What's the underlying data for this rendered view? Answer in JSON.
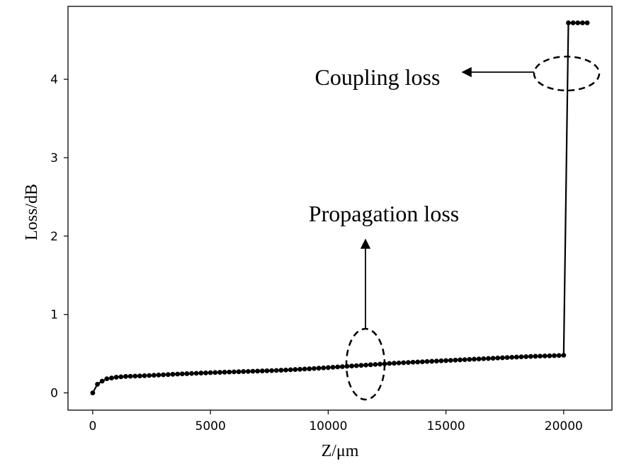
{
  "chart_data": {
    "type": "line",
    "title": "",
    "xlabel": "Z/μm",
    "ylabel": "Loss/dB",
    "xlim": [
      -1050,
      22050
    ],
    "ylim": [
      -0.22,
      4.93
    ],
    "xticks": [
      0,
      5000,
      10000,
      15000,
      20000
    ],
    "yticks": [
      0,
      1,
      2,
      3,
      4
    ],
    "grid": false,
    "legend": "none",
    "series": [
      {
        "color": "#000000",
        "marker": "circle",
        "x": [
          0,
          200,
          400,
          600,
          800,
          1000,
          1200,
          1400,
          1600,
          1800,
          2000,
          2200,
          2400,
          2600,
          2800,
          3000,
          3200,
          3400,
          3600,
          3800,
          4000,
          4200,
          4400,
          4600,
          4800,
          5000,
          5200,
          5400,
          5600,
          5800,
          6000,
          6200,
          6400,
          6600,
          6800,
          7000,
          7200,
          7400,
          7600,
          7800,
          8000,
          8200,
          8400,
          8600,
          8800,
          9000,
          9200,
          9400,
          9600,
          9800,
          10000,
          10200,
          10400,
          10600,
          10800,
          11000,
          11200,
          11400,
          11600,
          11800,
          12000,
          12200,
          12400,
          12600,
          12800,
          13000,
          13200,
          13400,
          13600,
          13800,
          14000,
          14200,
          14400,
          14600,
          14800,
          15000,
          15200,
          15400,
          15600,
          15800,
          16000,
          16200,
          16400,
          16600,
          16800,
          17000,
          17200,
          17400,
          17600,
          17800,
          18000,
          18200,
          18400,
          18600,
          18800,
          19000,
          19200,
          19400,
          19600,
          19800,
          20000,
          20200,
          20400,
          20600,
          20800,
          21000
        ],
        "y": [
          0.0,
          0.11,
          0.15,
          0.18,
          0.19,
          0.2,
          0.205,
          0.21,
          0.212,
          0.214,
          0.216,
          0.219,
          0.222,
          0.225,
          0.228,
          0.231,
          0.234,
          0.237,
          0.24,
          0.243,
          0.245,
          0.248,
          0.25,
          0.253,
          0.255,
          0.258,
          0.26,
          0.262,
          0.264,
          0.266,
          0.268,
          0.27,
          0.272,
          0.274,
          0.276,
          0.278,
          0.28,
          0.282,
          0.284,
          0.286,
          0.289,
          0.292,
          0.295,
          0.298,
          0.301,
          0.304,
          0.307,
          0.311,
          0.315,
          0.319,
          0.323,
          0.327,
          0.331,
          0.335,
          0.339,
          0.343,
          0.347,
          0.351,
          0.355,
          0.359,
          0.363,
          0.367,
          0.371,
          0.375,
          0.378,
          0.382,
          0.385,
          0.388,
          0.391,
          0.394,
          0.397,
          0.4,
          0.403,
          0.406,
          0.409,
          0.412,
          0.415,
          0.418,
          0.421,
          0.424,
          0.427,
          0.43,
          0.433,
          0.436,
          0.439,
          0.442,
          0.445,
          0.448,
          0.451,
          0.454,
          0.457,
          0.46,
          0.462,
          0.465,
          0.467,
          0.469,
          0.471,
          0.473,
          0.475,
          0.477,
          0.48,
          4.72,
          4.72,
          4.72,
          4.72,
          4.72
        ]
      }
    ],
    "annotations": [
      {
        "text": "Coupling loss",
        "target_x": 20200,
        "target_y": 4.04
      },
      {
        "text": "Propagation loss",
        "target_x": 11600,
        "target_y": 0.34
      }
    ]
  }
}
